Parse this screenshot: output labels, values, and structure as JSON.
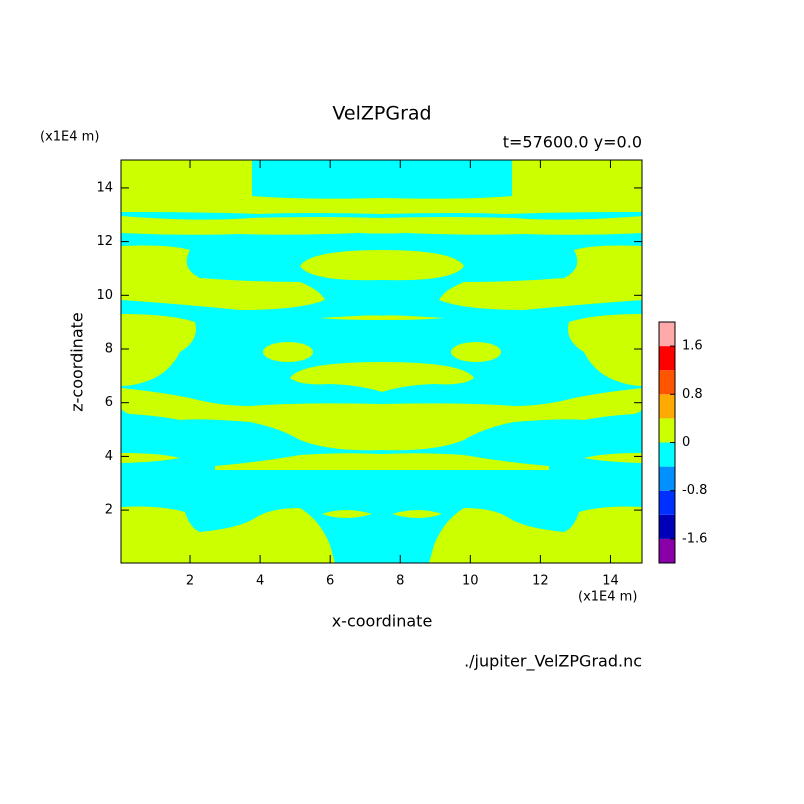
{
  "chart_data": {
    "type": "contour",
    "title": "VelZPGrad",
    "subtitle": "t=57600.0 y=0.0",
    "x_label": "x-coordinate",
    "y_label": "z-coordinate",
    "x_unit": "(x1E4 m)",
    "y_unit": "(x1E4 m)",
    "source": "./jupiter_VelZPGrad.nc",
    "xlim": [
      0.03,
      14.9
    ],
    "ylim": [
      0.03,
      15.04
    ],
    "xticks": [
      2,
      4,
      6,
      8,
      10,
      12,
      14
    ],
    "yticks": [
      2,
      4,
      6,
      8,
      10,
      12,
      14
    ],
    "colorbar": {
      "levels": [
        -2,
        -1.6,
        -1.2,
        -0.8,
        -0.4,
        0,
        0.4,
        0.8,
        1.2,
        1.6,
        2
      ],
      "colors": [
        "#8a00a8",
        "#0000b8",
        "#0030ff",
        "#0090ff",
        "#00ffff",
        "#ccff00",
        "#ffaa00",
        "#ff5500",
        "#ff0000",
        "#ffaaaa"
      ],
      "ticks": [
        -1.6,
        -0.8,
        0,
        0.8,
        1.6
      ]
    }
  }
}
